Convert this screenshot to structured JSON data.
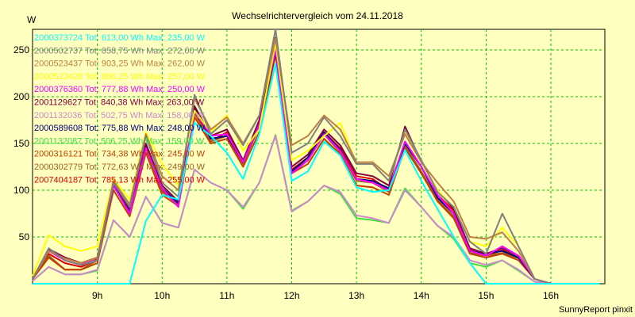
{
  "chart_data": {
    "type": "line",
    "title": "Wechselrichtervergleich vom 24.11.2018",
    "ylabel": "W",
    "xlabel": "",
    "footer": "SunnyReport pinxit",
    "grid": true,
    "legend_position": "top-left",
    "xlim": [
      8.0,
      16.833
    ],
    "ylim": [
      0,
      272
    ],
    "x_ticks": [
      {
        "x": 9,
        "label": "9h"
      },
      {
        "x": 10,
        "label": "10h"
      },
      {
        "x": 11,
        "label": "11h"
      },
      {
        "x": 12,
        "label": "12h"
      },
      {
        "x": 13,
        "label": "13h"
      },
      {
        "x": 14,
        "label": "14h"
      },
      {
        "x": 15,
        "label": "15h"
      },
      {
        "x": 16,
        "label": "16h"
      }
    ],
    "y_ticks": [
      50,
      100,
      150,
      200,
      250
    ],
    "x": [
      8.0,
      8.25,
      8.5,
      8.75,
      9.0,
      9.25,
      9.5,
      9.75,
      10.0,
      10.25,
      10.5,
      10.75,
      11.0,
      11.25,
      11.5,
      11.75,
      12.0,
      12.25,
      12.5,
      12.75,
      13.0,
      13.25,
      13.5,
      13.75,
      14.0,
      14.25,
      14.5,
      14.75,
      15.0,
      15.25,
      15.5,
      15.75,
      16.0,
      16.25,
      16.5,
      16.75
    ],
    "series": [
      {
        "name": "2000373724 Tot: 613,00 Wh Max: 235,00 W",
        "color": "#00ffff",
        "values": [
          0,
          0,
          0,
          0,
          0,
          0,
          0,
          67,
          95,
          90,
          172,
          158,
          140,
          112,
          160,
          235,
          110,
          120,
          152,
          137,
          103,
          98,
          100,
          143,
          110,
          80,
          50,
          22,
          0,
          0,
          0,
          0,
          0,
          0,
          0,
          0
        ]
      },
      {
        "name": "2000502737 Tot: 858,75 Wh Max: 272,00 W",
        "color": "#808080",
        "values": [
          5,
          38,
          25,
          20,
          25,
          108,
          82,
          158,
          108,
          93,
          202,
          160,
          175,
          148,
          180,
          272,
          140,
          150,
          178,
          158,
          128,
          128,
          110,
          165,
          132,
          98,
          82,
          45,
          32,
          75,
          40,
          5,
          0,
          0,
          0,
          0
        ]
      },
      {
        "name": "2000523437 Tot: 903,25 Wh Max: 262,00 W",
        "color": "#c08040",
        "values": [
          5,
          35,
          27,
          22,
          28,
          110,
          85,
          160,
          115,
          100,
          198,
          165,
          178,
          150,
          180,
          262,
          148,
          158,
          180,
          165,
          130,
          130,
          115,
          160,
          130,
          108,
          88,
          50,
          48,
          55,
          35,
          5,
          0,
          0,
          0,
          0
        ]
      },
      {
        "name": "2000523428 Tot: 886,25 Wh Max: 257,00 W",
        "color": "#ffff00",
        "values": [
          8,
          52,
          40,
          35,
          40,
          112,
          90,
          162,
          128,
          105,
          185,
          162,
          180,
          142,
          165,
          257,
          132,
          142,
          158,
          172,
          128,
          128,
          110,
          162,
          130,
          100,
          82,
          45,
          40,
          60,
          40,
          5,
          0,
          0,
          0,
          0
        ]
      },
      {
        "name": "2000376360 Tot: 777,88 Wh Max: 250,00 W",
        "color": "#ff00ff",
        "values": [
          5,
          35,
          25,
          20,
          28,
          105,
          75,
          145,
          102,
          82,
          185,
          158,
          160,
          130,
          170,
          250,
          118,
          132,
          160,
          142,
          112,
          108,
          100,
          152,
          125,
          95,
          75,
          35,
          30,
          40,
          30,
          5,
          0,
          0,
          0,
          0
        ]
      },
      {
        "name": "2001129627 Tot: 840,38 Wh Max: 263,00 W",
        "color": "#800040",
        "values": [
          5,
          37,
          28,
          22,
          28,
          108,
          80,
          150,
          105,
          88,
          190,
          158,
          165,
          132,
          175,
          263,
          125,
          138,
          165,
          148,
          118,
          115,
          105,
          168,
          130,
          100,
          80,
          38,
          32,
          38,
          30,
          5,
          0,
          0,
          0,
          0
        ]
      },
      {
        "name": "2001132036 Tot: 502,75 Wh Max: 158,00 W",
        "color": "#cc88cc",
        "values": [
          3,
          18,
          10,
          10,
          15,
          68,
          50,
          93,
          65,
          60,
          122,
          108,
          100,
          82,
          108,
          158,
          77,
          88,
          105,
          98,
          73,
          70,
          65,
          100,
          82,
          62,
          50,
          25,
          20,
          25,
          15,
          2,
          0,
          0,
          0,
          0
        ]
      },
      {
        "name": "2000589608 Tot: 775,88 Wh Max: 248,00 W",
        "color": "#000080",
        "values": [
          5,
          37,
          28,
          22,
          28,
          105,
          78,
          148,
          102,
          86,
          188,
          155,
          158,
          130,
          170,
          248,
          120,
          135,
          162,
          143,
          112,
          110,
          102,
          150,
          125,
          92,
          75,
          35,
          32,
          35,
          28,
          5,
          0,
          0,
          0,
          0
        ]
      },
      {
        "name": "2001132087 Tot: 506,25 Wh Max: 159,00 W",
        "color": "#40e040",
        "values": [
          3,
          18,
          10,
          10,
          14,
          68,
          50,
          93,
          65,
          60,
          122,
          108,
          100,
          80,
          108,
          159,
          78,
          88,
          105,
          96,
          70,
          68,
          65,
          102,
          82,
          62,
          48,
          22,
          18,
          25,
          14,
          2,
          0,
          0,
          0,
          0
        ]
      },
      {
        "name": "2000316121 Tot: 734,38 Wh Max: 245,00 W",
        "color": "#c04000",
        "values": [
          5,
          28,
          15,
          15,
          22,
          100,
          72,
          140,
          95,
          83,
          178,
          150,
          155,
          125,
          162,
          245,
          118,
          128,
          155,
          138,
          105,
          103,
          95,
          145,
          118,
          88,
          70,
          32,
          28,
          32,
          25,
          5,
          0,
          0,
          0,
          0
        ]
      },
      {
        "name": "2000302779 Tot: 772,63 Wh Max: 249,00 W",
        "color": "#a06020",
        "values": [
          5,
          30,
          15,
          15,
          25,
          105,
          75,
          145,
          98,
          85,
          182,
          152,
          158,
          128,
          168,
          249,
          120,
          132,
          160,
          140,
          110,
          108,
          98,
          148,
          120,
          90,
          72,
          33,
          30,
          33,
          27,
          5,
          0,
          0,
          0,
          0
        ]
      },
      {
        "name": "2007404187 Tot: 785,13 Wh Max: 255,00 W",
        "color": "#e00000",
        "values": [
          5,
          32,
          22,
          18,
          26,
          106,
          78,
          148,
          100,
          85,
          185,
          152,
          162,
          130,
          170,
          255,
          122,
          135,
          162,
          145,
          115,
          112,
          100,
          152,
          125,
          95,
          78,
          36,
          30,
          36,
          28,
          5,
          0,
          0,
          0,
          0
        ]
      }
    ]
  }
}
